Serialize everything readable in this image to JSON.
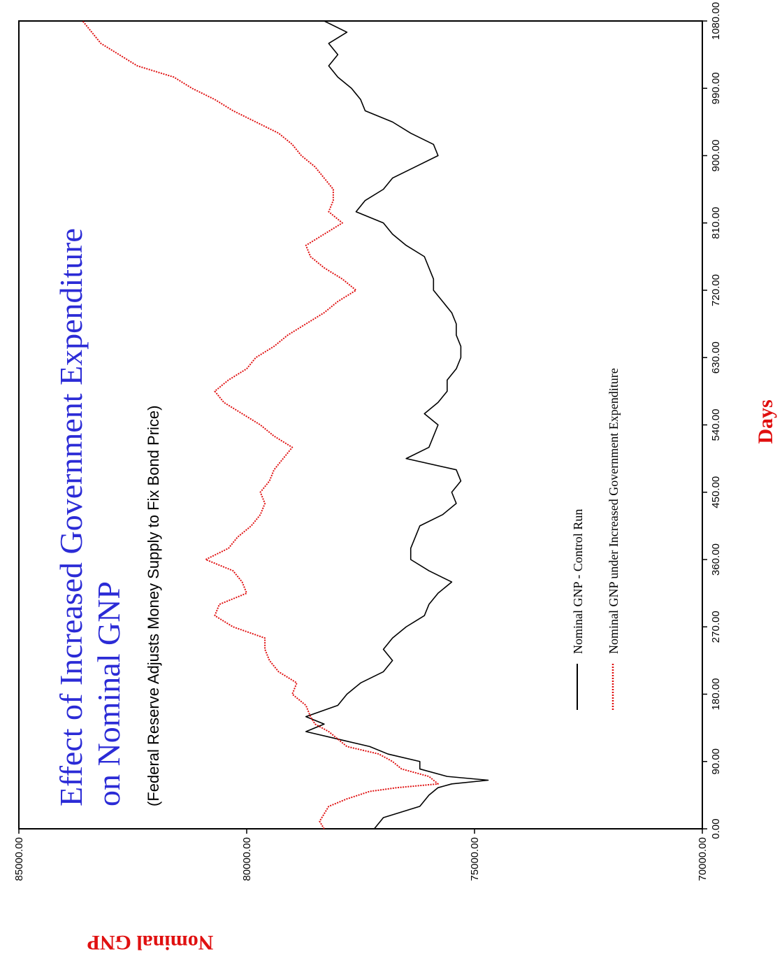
{
  "chart_data": {
    "type": "line",
    "title_line1_part1": "Effect of Increased ",
    "title_line1_part2": "Government Expenditure",
    "title_line2": "on Nominal GNP",
    "subtitle": "(Federal Reserve Adjusts Money Supply to Fix Bond Price)",
    "xlabel": "Days",
    "ylabel": "Nominal GNP",
    "xlim": [
      0,
      1080
    ],
    "ylim": [
      70000,
      85000
    ],
    "x_ticks": [
      0,
      90,
      180,
      270,
      360,
      450,
      540,
      630,
      720,
      810,
      900,
      990,
      1080
    ],
    "x_tick_labels": [
      "0.00",
      "90.00",
      "180.00",
      "270.00",
      "360.00",
      "450.00",
      "540.00",
      "630.00",
      "720.00",
      "810.00",
      "900.00",
      "990.00",
      "1080.00"
    ],
    "y_ticks": [
      70000,
      75000,
      80000,
      85000
    ],
    "y_tick_labels": [
      "70000.00",
      "75000.00",
      "80000.00",
      "85000.00"
    ],
    "legend_placement": "lower-right",
    "colors": {
      "title_accent": "#2b2bd6",
      "axis_title": "#e01010",
      "control": "#000000",
      "increased": "#e01010"
    },
    "series": [
      {
        "name": "Nominal GNP - Control Run",
        "style": "solid",
        "x": [
          0,
          15,
          30,
          45,
          55,
          60,
          65,
          70,
          80,
          90,
          100,
          110,
          120,
          130,
          140,
          150,
          165,
          180,
          195,
          210,
          225,
          240,
          255,
          270,
          285,
          300,
          315,
          330,
          345,
          360,
          375,
          390,
          405,
          420,
          435,
          450,
          465,
          480,
          495,
          510,
          525,
          540,
          555,
          570,
          585,
          600,
          615,
          630,
          645,
          660,
          675,
          690,
          705,
          720,
          735,
          750,
          765,
          780,
          795,
          810,
          825,
          840,
          855,
          870,
          885,
          900,
          915,
          930,
          945,
          960,
          975,
          990,
          1005,
          1020,
          1035,
          1050,
          1065,
          1080
        ],
        "y": [
          77200,
          77000,
          76200,
          76000,
          75800,
          75500,
          74700,
          75600,
          76200,
          76200,
          76900,
          77300,
          78000,
          78700,
          78300,
          78700,
          78000,
          77800,
          77500,
          77000,
          76800,
          77000,
          76800,
          76500,
          76100,
          76000,
          75800,
          75500,
          76000,
          76400,
          76400,
          76300,
          76200,
          75700,
          75400,
          75500,
          75300,
          75400,
          76500,
          76000,
          75900,
          75800,
          76100,
          75800,
          75600,
          75600,
          75400,
          75300,
          75300,
          75400,
          75400,
          75500,
          75700,
          75900,
          75900,
          76000,
          76100,
          76500,
          76800,
          77000,
          77600,
          77400,
          77000,
          76800,
          76300,
          75800,
          75900,
          76400,
          76800,
          77400,
          77500,
          77700,
          78000,
          78200,
          78000,
          78200,
          77800,
          78300
        ]
      },
      {
        "name": "Nominal GNP under Increased Government Expenditure",
        "style": "dotted",
        "x": [
          0,
          10,
          20,
          30,
          40,
          50,
          55,
          60,
          65,
          70,
          80,
          90,
          100,
          110,
          120,
          130,
          140,
          150,
          165,
          180,
          195,
          210,
          225,
          240,
          255,
          270,
          285,
          300,
          315,
          330,
          345,
          360,
          375,
          390,
          405,
          420,
          435,
          450,
          465,
          480,
          495,
          510,
          525,
          540,
          555,
          570,
          585,
          600,
          615,
          630,
          645,
          660,
          675,
          690,
          705,
          720,
          735,
          750,
          765,
          780,
          795,
          810,
          825,
          840,
          855,
          870,
          885,
          900,
          915,
          930,
          945,
          960,
          975,
          990,
          1005,
          1020,
          1035,
          1050,
          1065,
          1080
        ],
        "y": [
          78300,
          78400,
          78300,
          78200,
          77800,
          77300,
          76700,
          75800,
          75900,
          76000,
          76600,
          76800,
          77100,
          77800,
          78000,
          78200,
          78500,
          78600,
          78700,
          79000,
          78900,
          79300,
          79500,
          79600,
          79600,
          80300,
          80700,
          80600,
          80000,
          80100,
          80300,
          80900,
          80400,
          80200,
          79900,
          79700,
          79600,
          79700,
          79500,
          79400,
          79200,
          79000,
          79400,
          79700,
          80100,
          80500,
          80700,
          80400,
          80000,
          79800,
          79400,
          79100,
          78700,
          78300,
          78000,
          77600,
          77900,
          78300,
          78600,
          78700,
          78300,
          77900,
          78200,
          78100,
          78100,
          78300,
          78500,
          78800,
          79000,
          79300,
          79800,
          80300,
          80700,
          81200,
          81600,
          82400,
          82800,
          83200,
          83400,
          83600
        ]
      }
    ]
  }
}
